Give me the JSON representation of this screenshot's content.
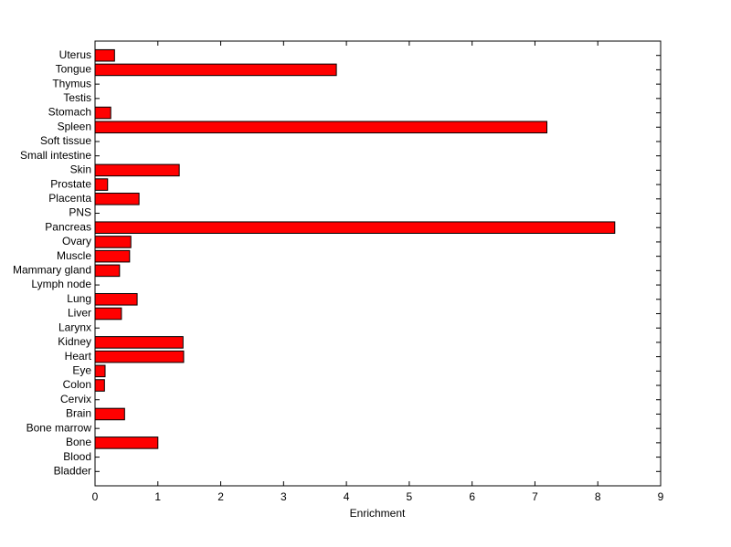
{
  "chart_data": {
    "type": "barh",
    "xlabel": "Enrichment",
    "categories": [
      "Bladder",
      "Blood",
      "Bone",
      "Bone marrow",
      "Brain",
      "Cervix",
      "Colon",
      "Eye",
      "Heart",
      "Kidney",
      "Larynx",
      "Liver",
      "Lung",
      "Lymph node",
      "Mammary gland",
      "Muscle",
      "Ovary",
      "Pancreas",
      "PNS",
      "Placenta",
      "Prostate",
      "Skin",
      "Small intestine",
      "Soft tissue",
      "Spleen",
      "Stomach",
      "Testis",
      "Thymus",
      "Tongue",
      "Uterus"
    ],
    "values": [
      0,
      0,
      1.0,
      0,
      0.47,
      0,
      0.15,
      0.16,
      1.41,
      1.4,
      0,
      0.42,
      0.67,
      0,
      0.39,
      0.55,
      0.57,
      8.27,
      0,
      0.7,
      0.2,
      1.34,
      0,
      0,
      7.19,
      0.25,
      0,
      0,
      3.84,
      0.31
    ],
    "color": "#ff0000",
    "xlim": [
      0,
      9
    ],
    "xticks": [
      0,
      1,
      2,
      3,
      4,
      5,
      6,
      7,
      8,
      9
    ]
  }
}
